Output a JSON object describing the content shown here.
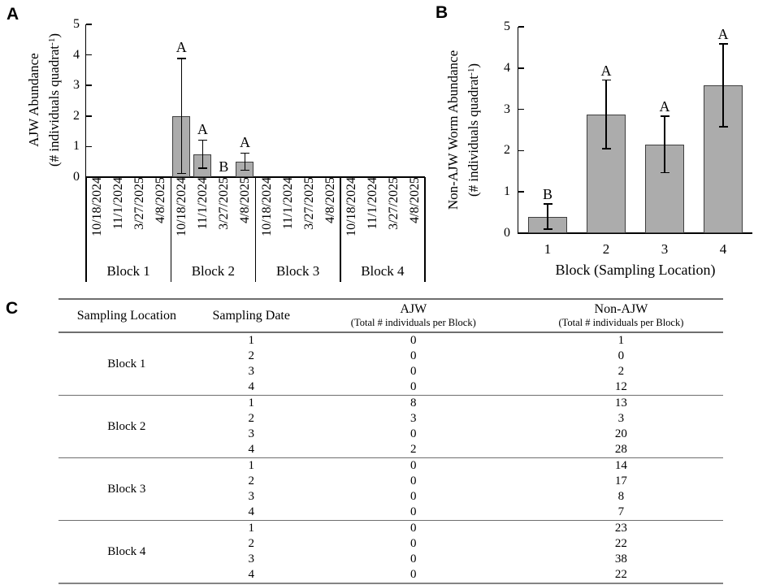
{
  "figure": {
    "panel_a_label": "A",
    "panel_b_label": "B",
    "panel_c_label": "C"
  },
  "colors": {
    "bar_fill": "#ACACAC",
    "bar_border": "#3F3F3F",
    "axis_line": "#000000",
    "table_line": "#6E6E6E"
  },
  "chart_data": [
    {
      "id": "panel_a",
      "type": "bar",
      "panel_label": "A",
      "ylabel_main": "AJW Abundance",
      "ylabel_unit": {
        "prefix": "(# individuals quadrat",
        "sup": "-1",
        "suffix": ")"
      },
      "ylim": [
        0,
        5
      ],
      "yticks": [
        0,
        1,
        2,
        3,
        4,
        5
      ],
      "date_categories": [
        "10/18/2024",
        "11/1/2024",
        "3/27/2025",
        "4/8/2025"
      ],
      "blocks": [
        {
          "label": "Block 1",
          "values": [
            0,
            0,
            0,
            0
          ],
          "errors": [
            0,
            0,
            0,
            0
          ],
          "letters": [
            "",
            "",
            "",
            ""
          ]
        },
        {
          "label": "Block 2",
          "values": [
            2.0,
            0.75,
            0,
            0.5
          ],
          "errors": [
            1.9,
            0.48,
            0,
            0.3
          ],
          "letters": [
            "A",
            "A",
            "B",
            "A"
          ]
        },
        {
          "label": "Block 3",
          "values": [
            0,
            0,
            0,
            0
          ],
          "errors": [
            0,
            0,
            0,
            0
          ],
          "letters": [
            "",
            "",
            "",
            ""
          ]
        },
        {
          "label": "Block 4",
          "values": [
            0,
            0,
            0,
            0
          ],
          "errors": [
            0,
            0,
            0,
            0
          ],
          "letters": [
            "",
            "",
            "",
            ""
          ]
        }
      ]
    },
    {
      "id": "panel_b",
      "type": "bar",
      "panel_label": "B",
      "ylabel_main": "Non-AJW Worm Abundance",
      "ylabel_unit": {
        "prefix": "(# individuals quadrat",
        "sup": "-1",
        "suffix": ")"
      },
      "xlabel": "Block (Sampling Location)",
      "ylim": [
        0,
        5
      ],
      "yticks": [
        0,
        1,
        2,
        3,
        4,
        5
      ],
      "categories": [
        "1",
        "2",
        "3",
        "4"
      ],
      "values": [
        0.4,
        2.88,
        2.15,
        3.58
      ],
      "errors": [
        0.32,
        0.85,
        0.7,
        1.02
      ],
      "letters": [
        "B",
        "A",
        "A",
        "A"
      ]
    },
    {
      "id": "panel_c",
      "type": "table",
      "headers": [
        {
          "main": "Sampling Location",
          "sub": ""
        },
        {
          "main": "Sampling Date",
          "sub": ""
        },
        {
          "main": "AJW",
          "sub": "(Total # individuals per Block)"
        },
        {
          "main": "Non-AJW",
          "sub": "(Total # individuals per Block)"
        }
      ],
      "sections": [
        {
          "location": "Block 1",
          "rows": [
            [
              "1",
              "0",
              "1"
            ],
            [
              "2",
              "0",
              "0"
            ],
            [
              "3",
              "0",
              "2"
            ],
            [
              "4",
              "0",
              "12"
            ]
          ]
        },
        {
          "location": "Block 2",
          "rows": [
            [
              "1",
              "8",
              "13"
            ],
            [
              "2",
              "3",
              "3"
            ],
            [
              "3",
              "0",
              "20"
            ],
            [
              "4",
              "2",
              "28"
            ]
          ]
        },
        {
          "location": "Block 3",
          "rows": [
            [
              "1",
              "0",
              "14"
            ],
            [
              "2",
              "0",
              "17"
            ],
            [
              "3",
              "0",
              "8"
            ],
            [
              "4",
              "0",
              "7"
            ]
          ]
        },
        {
          "location": "Block 4",
          "rows": [
            [
              "1",
              "0",
              "23"
            ],
            [
              "2",
              "0",
              "22"
            ],
            [
              "3",
              "0",
              "38"
            ],
            [
              "4",
              "0",
              "22"
            ]
          ]
        }
      ]
    }
  ]
}
